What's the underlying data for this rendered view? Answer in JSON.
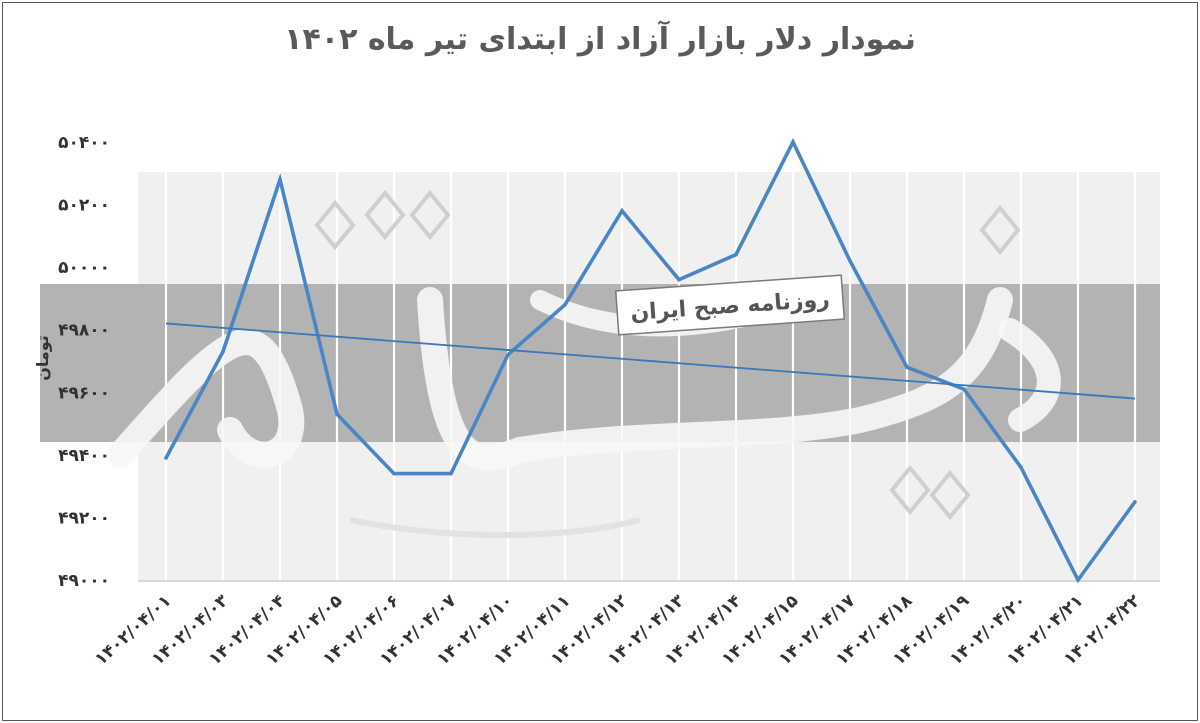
{
  "chart_data": {
    "type": "line",
    "title": "نمودار دلار بازار آزاد از ابتدای تیر ماه ۱۴۰۲",
    "ylabel": "تومان",
    "xlabel": "",
    "ylim": [
      49000,
      50400
    ],
    "yticks": [
      {
        "value": 49000,
        "label": "۴۹۰۰۰"
      },
      {
        "value": 49200,
        "label": "۴۹۲۰۰"
      },
      {
        "value": 49400,
        "label": "۴۹۴۰۰"
      },
      {
        "value": 49600,
        "label": "۴۹۶۰۰"
      },
      {
        "value": 49800,
        "label": "۴۹۸۰۰"
      },
      {
        "value": 50000,
        "label": "۵۰۰۰۰"
      },
      {
        "value": 50200,
        "label": "۵۰۲۰۰"
      },
      {
        "value": 50400,
        "label": "۵۰۴۰۰"
      }
    ],
    "categories": [
      "۱۴۰۲/۰۴/۰۱",
      "۱۴۰۲/۰۴/۰۳",
      "۱۴۰۲/۰۴/۰۴",
      "۱۴۰۲/۰۴/۰۵",
      "۱۴۰۲/۰۴/۰۶",
      "۱۴۰۲/۰۴/۰۷",
      "۱۴۰۲/۰۴/۱۰",
      "۱۴۰۲/۰۴/۱۱",
      "۱۴۰۲/۰۴/۱۲",
      "۱۴۰۲/۰۴/۱۳",
      "۱۴۰۲/۰۴/۱۴",
      "۱۴۰۲/۰۴/۱۵",
      "۱۴۰۲/۰۴/۱۷",
      "۱۴۰۲/۰۴/۱۸",
      "۱۴۰۲/۰۴/۱۹",
      "۱۴۰۲/۰۴/۲۰",
      "۱۴۰۲/۰۴/۲۱",
      "۱۴۰۲/۰۴/۲۲"
    ],
    "series": [
      {
        "values": [
          49390,
          49730,
          50280,
          49530,
          49340,
          49340,
          49720,
          49880,
          50180,
          49960,
          50040,
          50400,
          50020,
          49680,
          49610,
          49360,
          49000,
          49250
        ],
        "color": "#4a86c5"
      }
    ],
    "trendline": {
      "start": 49820,
      "end": 49580,
      "color": "#3a78b8"
    },
    "grid": "vertical"
  },
  "watermark": {
    "label": "روزنامه صبح ایران",
    "logo_text": "دنیای اقتصاد"
  }
}
